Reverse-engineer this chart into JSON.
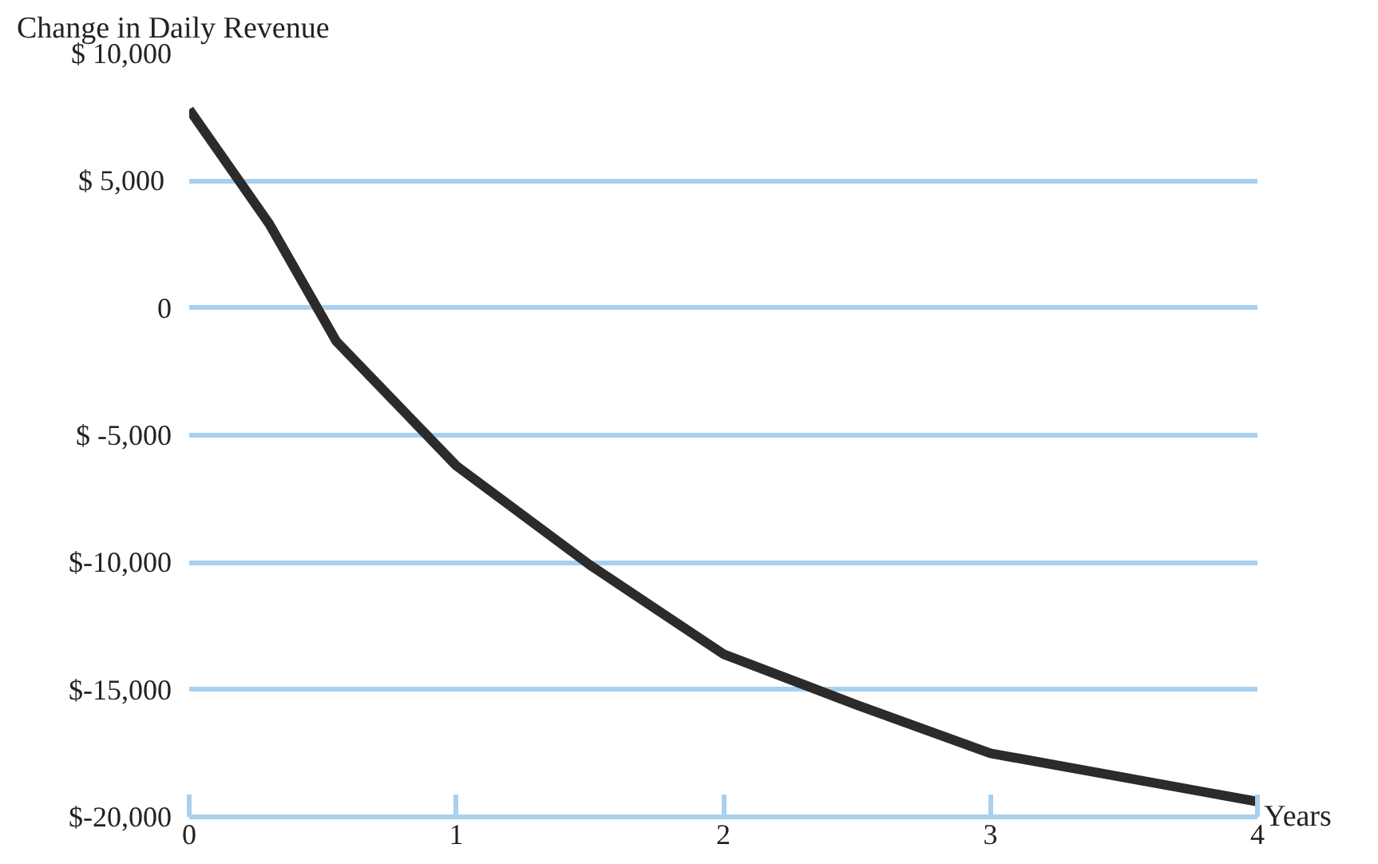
{
  "chart_data": {
    "type": "line",
    "xlabel": "Years",
    "ylabel": "Change in Daily Revenue",
    "x": [
      0,
      0.3,
      0.55,
      1,
      1.5,
      2,
      2.5,
      3,
      4
    ],
    "series": [
      {
        "color": "#2b2b2b",
        "values": [
          7800,
          3300,
          -1300,
          -6200,
          -10100,
          -13600,
          -15600,
          -17500,
          -19400
        ]
      }
    ],
    "xlim": [
      0,
      4
    ],
    "xticks": [
      0,
      1,
      2,
      3,
      4
    ],
    "ylim": [
      -20000,
      10000
    ],
    "yticks": [
      {
        "value": 10000,
        "label": "$ 10,000"
      },
      {
        "value": 5000,
        "label": "$  5,000"
      },
      0,
      {
        "value": -5000,
        "label": "$ -5,000"
      },
      {
        "value": -10000,
        "label": "$-10,000"
      },
      {
        "value": -15000,
        "label": "$-15,000"
      },
      {
        "value": -20000,
        "label": "$-20,000"
      }
    ],
    "grid": "y",
    "line_style": "solid",
    "marker": "none"
  }
}
